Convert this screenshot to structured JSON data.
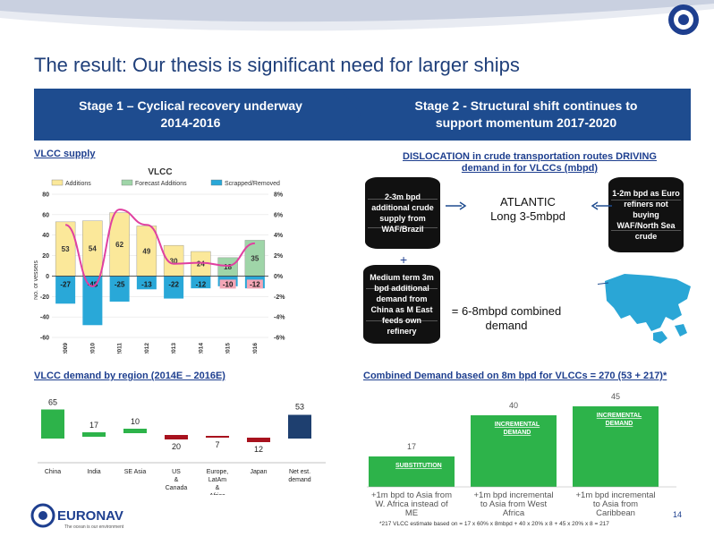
{
  "header": {
    "title": "The result: Our thesis is significant need for larger ships",
    "brand_color": "#1e4c8f"
  },
  "stages": {
    "stage1_line1": "Stage 1 – Cyclical recovery underway",
    "stage1_line2": "2014-2016",
    "stage2_line1": "Stage 2 - Structural shift continues to",
    "stage2_line2": "support momentum 2017-2020"
  },
  "sections": {
    "supply_label": "VLCC supply",
    "dislocation_line1": "DISLOCATION in crude transportation routes DRIVING",
    "dislocation_line2": "demand in for VLCCs (mbpd)",
    "demand_label": "VLCC demand by region (2014E – 2016E)",
    "combined_label": "Combined Demand based on 8m bpd for VLCCs = 270 (53 + 217)*"
  },
  "flow": {
    "barrel_left": "2-3m bpd additional crude supply from WAF/Brazil",
    "barrel_right": "1-2m bpd as Euro refiners not buying WAF/North Sea crude",
    "barrel_bottom": "Medium term 3m bpd additional demand from China as M East feeds own refinery",
    "atlantic_line1": "ATLANTIC",
    "atlantic_line2": "Long 3-5mbpd",
    "plus": "+",
    "combined_line1": "= 6-8mbpd combined",
    "combined_line2": "demand"
  },
  "chart_data": [
    {
      "type": "bar",
      "title": "VLCC",
      "legend": [
        "Additions",
        "Forecast Additions",
        "Scrapped/Removed"
      ],
      "ylabel": "No. of vessels",
      "ylim": [
        -60,
        80
      ],
      "y2lim": [
        -6,
        8
      ],
      "yticks": [
        "80",
        "60",
        "40",
        "20",
        "0",
        "-20",
        "-40",
        "-60"
      ],
      "y2ticks": [
        "8%",
        "6%",
        "4%",
        "2%",
        "0%",
        "-2%",
        "-4%",
        "-6%"
      ],
      "categories": [
        "2009",
        "2010",
        "2011",
        "2012",
        "2013",
        "2014",
        "2015",
        "2016"
      ],
      "series": [
        {
          "name": "Additions",
          "values": [
            53,
            54,
            62,
            49,
            30,
            24,
            null,
            null
          ],
          "color": "#fbe89a"
        },
        {
          "name": "Forecast Additions",
          "values": [
            null,
            null,
            null,
            null,
            null,
            null,
            18,
            35
          ],
          "color": "#9fd5a8"
        },
        {
          "name": "Scrapped/Removed",
          "values": [
            -27,
            -48,
            -25,
            -13,
            -22,
            -12,
            -10,
            -12
          ],
          "color": "#29a8d8"
        }
      ],
      "growth_line": [
        5.0,
        -1.0,
        6.5,
        5.0,
        1.2,
        1.3,
        1.0,
        3.2
      ],
      "growth_color": "#e040a0",
      "label_colors": [
        "#29a8d8",
        "#29a8d8",
        "#29a8d8",
        "#29a8d8",
        "#29a8d8",
        "#29a8d8",
        "#f4a6b6",
        "#f4a6b6"
      ]
    },
    {
      "type": "bar",
      "categories": [
        "China",
        "India",
        "SE Asia",
        "US & Canada",
        "Europe, LatAm & Africa",
        "Japan",
        "Net est. demand"
      ],
      "values": [
        65,
        17,
        10,
        -20,
        -7,
        -12,
        53
      ],
      "labels": [
        "65",
        "17",
        "10",
        "20",
        "7",
        "12",
        "53"
      ],
      "colors": [
        "#2db34a",
        "#2db34a",
        "#2db34a",
        "#a8121e",
        "#a8121e",
        "#a8121e",
        "#1e3f6f"
      ]
    },
    {
      "type": "bar",
      "categories": [
        "+1m bpd to Asia from W. Africa instead of ME",
        "+1m bpd incremental to Asia from West Africa",
        "+1m bpd incremental to Asia from Caribbean"
      ],
      "values": [
        17,
        40,
        45
      ],
      "inner_labels": [
        "SUBSTITUTION",
        "INCREMENTAL DEMAND",
        "INCREMENTAL DEMAND"
      ],
      "color": "#2db34a"
    }
  ],
  "footer": {
    "logo_text": "EURONAV",
    "tagline": "The ocean is our environment",
    "page": "14",
    "footnote": "*217 VLCC estimate based on = 17 x 60% x 8mbpd + 40 x 20% x 8 + 45 x 20% x 8 = 217"
  }
}
